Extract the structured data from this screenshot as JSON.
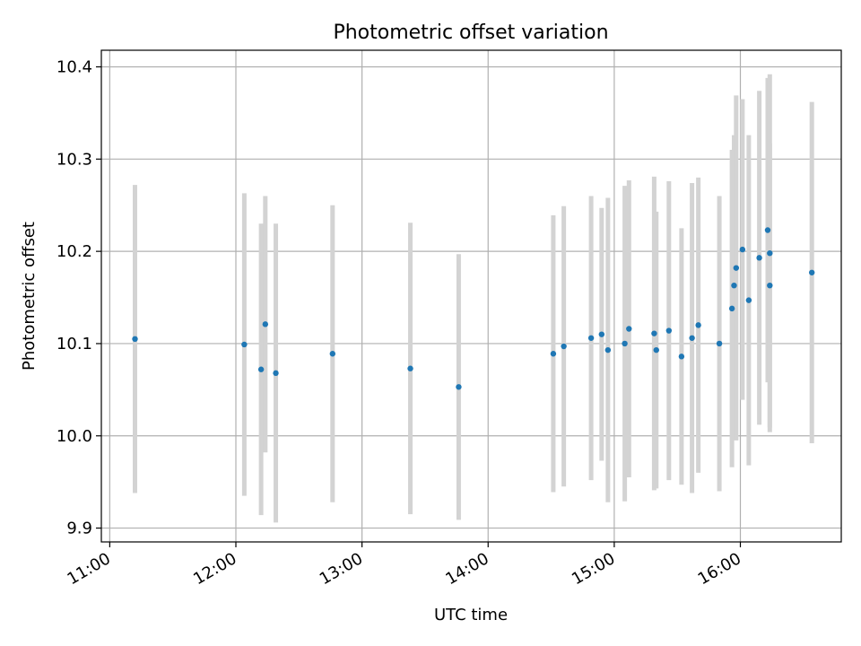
{
  "chart_data": {
    "type": "scatter",
    "title": "Photometric offset variation",
    "xlabel": "UTC time",
    "ylabel": "Photometric offset",
    "grid": true,
    "xlim": [
      "10:56",
      "16:48"
    ],
    "ylim": [
      9.885,
      10.418
    ],
    "x_ticks": [
      "11:00",
      "12:00",
      "13:00",
      "14:00",
      "15:00",
      "16:00"
    ],
    "y_ticks": [
      9.9,
      10.0,
      10.1,
      10.2,
      10.3,
      10.4
    ],
    "y_tick_labels": [
      "9.9",
      "10.0",
      "10.1",
      "10.2",
      "10.3",
      "10.4"
    ],
    "point_color": "#1f77b4",
    "errorbar_color": "#d3d3d3",
    "points": [
      {
        "x": "11:12",
        "y": 10.105,
        "err": 0.167
      },
      {
        "x": "12:04",
        "y": 10.099,
        "err": 0.164
      },
      {
        "x": "12:12",
        "y": 10.072,
        "err": 0.158
      },
      {
        "x": "12:14",
        "y": 10.121,
        "err": 0.139
      },
      {
        "x": "12:19",
        "y": 10.068,
        "err": 0.162
      },
      {
        "x": "12:46",
        "y": 10.089,
        "err": 0.161
      },
      {
        "x": "13:23",
        "y": 10.073,
        "err": 0.158
      },
      {
        "x": "13:46",
        "y": 10.053,
        "err": 0.144
      },
      {
        "x": "14:31",
        "y": 10.089,
        "err": 0.15
      },
      {
        "x": "14:36",
        "y": 10.097,
        "err": 0.152
      },
      {
        "x": "14:49",
        "y": 10.106,
        "err": 0.154
      },
      {
        "x": "14:54",
        "y": 10.11,
        "err": 0.137
      },
      {
        "x": "14:57",
        "y": 10.093,
        "err": 0.165
      },
      {
        "x": "15:05",
        "y": 10.1,
        "err": 0.171
      },
      {
        "x": "15:07",
        "y": 10.116,
        "err": 0.161
      },
      {
        "x": "15:19",
        "y": 10.111,
        "err": 0.17
      },
      {
        "x": "15:20",
        "y": 10.093,
        "err": 0.15
      },
      {
        "x": "15:26",
        "y": 10.114,
        "err": 0.162
      },
      {
        "x": "15:32",
        "y": 10.086,
        "err": 0.139
      },
      {
        "x": "15:37",
        "y": 10.106,
        "err": 0.168
      },
      {
        "x": "15:40",
        "y": 10.12,
        "err": 0.16
      },
      {
        "x": "15:50",
        "y": 10.1,
        "err": 0.16
      },
      {
        "x": "15:56",
        "y": 10.138,
        "err": 0.172
      },
      {
        "x": "15:57",
        "y": 10.163,
        "err": 0.163
      },
      {
        "x": "15:58",
        "y": 10.182,
        "err": 0.187
      },
      {
        "x": "16:01",
        "y": 10.202,
        "err": 0.163
      },
      {
        "x": "16:04",
        "y": 10.147,
        "err": 0.179
      },
      {
        "x": "16:09",
        "y": 10.193,
        "err": 0.181
      },
      {
        "x": "16:13",
        "y": 10.223,
        "err": 0.165
      },
      {
        "x": "16:14",
        "y": 10.198,
        "err": 0.194
      },
      {
        "x": "16:14",
        "y": 10.163,
        "err": 0.154
      },
      {
        "x": "16:34",
        "y": 10.177,
        "err": 0.185
      }
    ]
  }
}
